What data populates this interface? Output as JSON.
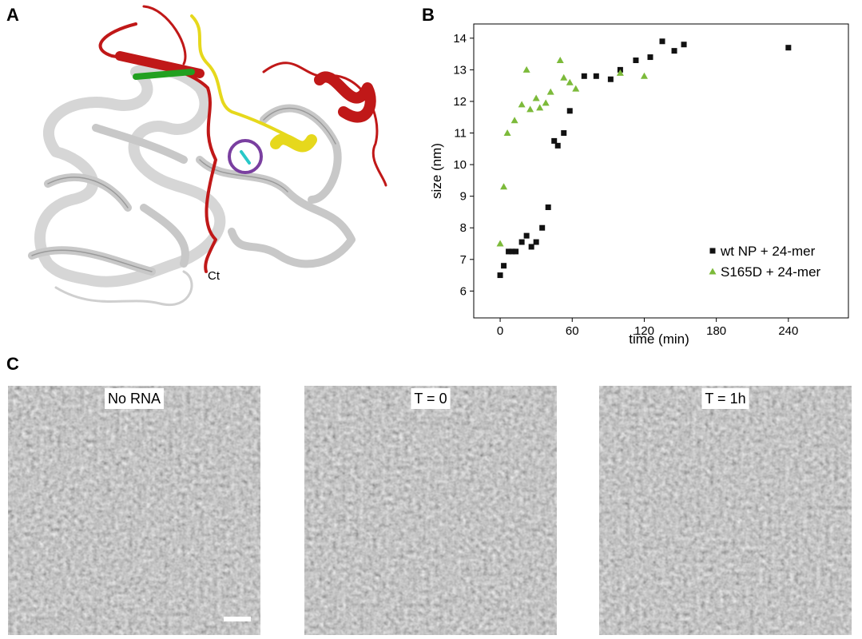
{
  "panel_labels": {
    "a": "A",
    "b": "B",
    "c": "C"
  },
  "panel_a": {
    "terminus_label": "Ct"
  },
  "panel_c": {
    "images": [
      {
        "label": "No RNA"
      },
      {
        "label": "T = 0"
      },
      {
        "label": "T = 1h"
      }
    ]
  },
  "chart_data": {
    "type": "scatter",
    "x_label": "time (min)",
    "y_label": "size (nm)",
    "xlim": [
      -22,
      290
    ],
    "ylim": [
      5.15,
      14.45
    ],
    "xticks": [
      0,
      60,
      120,
      180,
      240
    ],
    "yticks": [
      6,
      7,
      8,
      9,
      10,
      11,
      12,
      13,
      14
    ],
    "legend_position": "lower right",
    "series": [
      {
        "name": "wt NP + 24-mer",
        "color": "#111111",
        "marker": "square",
        "x": [
          0,
          3,
          7,
          10,
          13,
          18,
          22,
          26,
          30,
          35,
          40,
          45,
          48,
          53,
          58,
          70,
          80,
          92,
          100,
          113,
          125,
          135,
          145,
          153,
          240
        ],
        "values": [
          6.5,
          6.8,
          7.25,
          7.25,
          7.25,
          7.55,
          7.75,
          7.4,
          7.55,
          8.0,
          8.65,
          10.75,
          10.6,
          11.0,
          11.7,
          12.8,
          12.8,
          12.7,
          13.0,
          13.3,
          13.4,
          13.9,
          13.6,
          13.8,
          13.7
        ]
      },
      {
        "name": "S165D + 24-mer",
        "color": "#7cba3a",
        "marker": "triangle",
        "x": [
          0,
          3,
          6,
          12,
          18,
          22,
          25,
          30,
          33,
          38,
          42,
          50,
          53,
          58,
          63,
          100,
          120
        ],
        "values": [
          7.5,
          9.3,
          11.0,
          11.4,
          11.9,
          13.0,
          11.75,
          12.1,
          11.8,
          11.95,
          12.3,
          13.3,
          12.75,
          12.6,
          12.4,
          12.9,
          12.8
        ]
      }
    ]
  }
}
